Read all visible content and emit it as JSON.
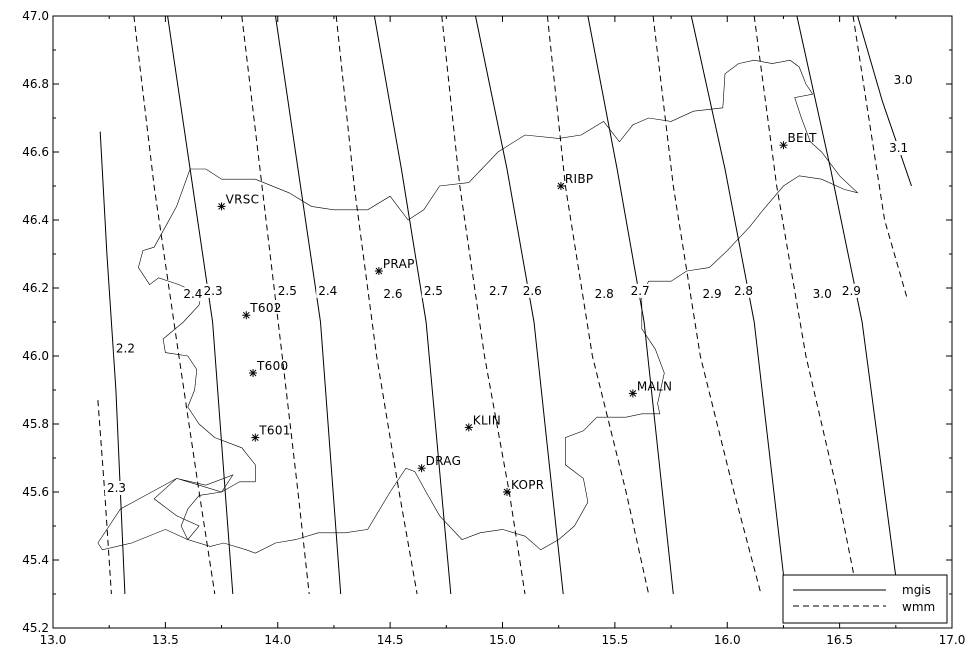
{
  "map": {
    "x_axis": {
      "min": 13.0,
      "max": 17.0,
      "ticks": [
        "13.0",
        "13.5",
        "14.0",
        "14.5",
        "15.0",
        "15.5",
        "16.0",
        "16.5",
        "17.0"
      ]
    },
    "y_axis": {
      "min": 45.2,
      "max": 47.0,
      "ticks": [
        "45.2",
        "45.4",
        "45.6",
        "45.8",
        "46.0",
        "46.2",
        "46.4",
        "46.6",
        "46.8",
        "47.0"
      ]
    }
  },
  "legend": [
    {
      "label": "mgis",
      "style": "solid"
    },
    {
      "label": "wmm",
      "style": "dashed"
    }
  ],
  "stations": [
    {
      "name": "VRSC",
      "lon": 13.75,
      "lat": 46.44
    },
    {
      "name": "RIBP",
      "lon": 15.26,
      "lat": 46.5
    },
    {
      "name": "BELT",
      "lon": 16.25,
      "lat": 46.62
    },
    {
      "name": "PRAP",
      "lon": 14.45,
      "lat": 46.25
    },
    {
      "name": "T602",
      "lon": 13.86,
      "lat": 46.12
    },
    {
      "name": "T600",
      "lon": 13.89,
      "lat": 45.95
    },
    {
      "name": "T601",
      "lon": 13.9,
      "lat": 45.76
    },
    {
      "name": "MALN",
      "lon": 15.58,
      "lat": 45.89
    },
    {
      "name": "KLIN",
      "lon": 14.85,
      "lat": 45.79
    },
    {
      "name": "DRAG",
      "lon": 14.64,
      "lat": 45.67
    },
    {
      "name": "KOPR",
      "lon": 15.02,
      "lat": 45.6
    }
  ],
  "isolines": [
    {
      "series": "mgis",
      "value": "2.2",
      "points": [
        [
          13.21,
          46.66
        ],
        [
          13.24,
          46.3
        ],
        [
          13.28,
          45.9
        ],
        [
          13.32,
          45.3
        ]
      ],
      "label_at": [
        13.28,
        46.01
      ]
    },
    {
      "series": "mgis",
      "value": "2.3",
      "points": [
        [
          13.51,
          47.0
        ],
        [
          13.61,
          46.55
        ],
        [
          13.71,
          46.1
        ],
        [
          13.8,
          45.3
        ]
      ],
      "label_at": [
        13.67,
        46.18
      ]
    },
    {
      "series": "mgis",
      "value": "2.4",
      "points": [
        [
          13.99,
          47.0
        ],
        [
          14.09,
          46.55
        ],
        [
          14.19,
          46.1
        ],
        [
          14.28,
          45.3
        ]
      ],
      "label_at": [
        14.18,
        46.18
      ]
    },
    {
      "series": "mgis",
      "value": "2.5",
      "points": [
        [
          14.43,
          47.0
        ],
        [
          14.55,
          46.55
        ],
        [
          14.66,
          46.1
        ],
        [
          14.77,
          45.3
        ]
      ],
      "label_at": [
        14.65,
        46.18
      ]
    },
    {
      "series": "mgis",
      "value": "2.6",
      "points": [
        [
          14.88,
          47.0
        ],
        [
          15.02,
          46.55
        ],
        [
          15.14,
          46.1
        ],
        [
          15.27,
          45.3
        ]
      ],
      "label_at": [
        15.09,
        46.18
      ]
    },
    {
      "series": "mgis",
      "value": "2.7",
      "points": [
        [
          15.38,
          47.0
        ],
        [
          15.51,
          46.55
        ],
        [
          15.63,
          46.1
        ],
        [
          15.76,
          45.3
        ]
      ],
      "label_at": [
        15.57,
        46.18
      ]
    },
    {
      "series": "mgis",
      "value": "2.8",
      "points": [
        [
          15.84,
          47.0
        ],
        [
          15.99,
          46.55
        ],
        [
          16.12,
          46.1
        ],
        [
          16.26,
          45.3
        ]
      ],
      "label_at": [
        16.03,
        46.18
      ]
    },
    {
      "series": "mgis",
      "value": "2.9",
      "points": [
        [
          16.31,
          47.0
        ],
        [
          16.46,
          46.55
        ],
        [
          16.6,
          46.1
        ],
        [
          16.76,
          45.3
        ]
      ],
      "label_at": [
        16.51,
        46.18
      ]
    },
    {
      "series": "mgis",
      "value": "3.0",
      "points": [
        [
          16.58,
          47.0
        ],
        [
          16.69,
          46.75
        ],
        [
          16.82,
          46.5
        ]
      ],
      "label_at": [
        16.74,
        46.8
      ]
    },
    {
      "series": "wmm",
      "value": "2.3",
      "points": [
        [
          13.2,
          45.87
        ],
        [
          13.23,
          45.6
        ],
        [
          13.26,
          45.3
        ]
      ],
      "label_at": [
        13.24,
        45.6
      ]
    },
    {
      "series": "wmm",
      "value": "2.4",
      "points": [
        [
          13.36,
          47.0
        ],
        [
          13.45,
          46.5
        ],
        [
          13.56,
          46.0
        ],
        [
          13.65,
          45.6
        ],
        [
          13.72,
          45.3
        ]
      ],
      "label_at": [
        13.58,
        46.17
      ]
    },
    {
      "series": "wmm",
      "value": "2.5",
      "points": [
        [
          13.84,
          47.0
        ],
        [
          13.93,
          46.5
        ],
        [
          14.02,
          46.0
        ],
        [
          14.09,
          45.6
        ],
        [
          14.14,
          45.3
        ]
      ],
      "label_at": [
        14.0,
        46.18
      ]
    },
    {
      "series": "wmm",
      "value": "2.6",
      "points": [
        [
          14.26,
          47.0
        ],
        [
          14.34,
          46.5
        ],
        [
          14.44,
          46.0
        ],
        [
          14.54,
          45.6
        ],
        [
          14.62,
          45.3
        ]
      ],
      "label_at": [
        14.47,
        46.17
      ]
    },
    {
      "series": "wmm",
      "value": "2.7",
      "points": [
        [
          14.73,
          47.0
        ],
        [
          14.81,
          46.5
        ],
        [
          14.92,
          46.0
        ],
        [
          15.03,
          45.6
        ],
        [
          15.1,
          45.3
        ]
      ],
      "label_at": [
        14.94,
        46.18
      ]
    },
    {
      "series": "wmm",
      "value": "2.8",
      "points": [
        [
          15.2,
          47.0
        ],
        [
          15.28,
          46.5
        ],
        [
          15.4,
          46.0
        ],
        [
          15.55,
          45.6
        ],
        [
          15.65,
          45.3
        ]
      ],
      "label_at": [
        15.41,
        46.17
      ]
    },
    {
      "series": "wmm",
      "value": "2.9",
      "points": [
        [
          15.67,
          47.0
        ],
        [
          15.76,
          46.5
        ],
        [
          15.88,
          46.0
        ],
        [
          16.03,
          45.6
        ],
        [
          16.15,
          45.3
        ]
      ],
      "label_at": [
        15.89,
        46.17
      ]
    },
    {
      "series": "wmm",
      "value": "3.0",
      "points": [
        [
          16.12,
          47.0
        ],
        [
          16.22,
          46.5
        ],
        [
          16.35,
          46.0
        ],
        [
          16.49,
          45.6
        ],
        [
          16.58,
          45.3
        ]
      ],
      "label_at": [
        16.38,
        46.17
      ]
    },
    {
      "series": "wmm",
      "value": "3.1",
      "points": [
        [
          16.56,
          47.0
        ],
        [
          16.63,
          46.7
        ],
        [
          16.7,
          46.4
        ],
        [
          16.8,
          46.17
        ]
      ],
      "label_at": [
        16.72,
        46.6
      ]
    }
  ],
  "boundary": [
    [
      13.61,
      46.55
    ],
    [
      13.68,
      46.55
    ],
    [
      13.75,
      46.52
    ],
    [
      13.9,
      46.52
    ],
    [
      14.05,
      46.48
    ],
    [
      14.15,
      46.44
    ],
    [
      14.25,
      46.43
    ],
    [
      14.4,
      46.43
    ],
    [
      14.5,
      46.47
    ],
    [
      14.58,
      46.4
    ],
    [
      14.65,
      46.43
    ],
    [
      14.72,
      46.5
    ],
    [
      14.85,
      46.51
    ],
    [
      14.98,
      46.6
    ],
    [
      15.1,
      46.65
    ],
    [
      15.25,
      46.64
    ],
    [
      15.35,
      46.65
    ],
    [
      15.45,
      46.69
    ],
    [
      15.52,
      46.63
    ],
    [
      15.58,
      46.68
    ],
    [
      15.65,
      46.7
    ],
    [
      15.75,
      46.69
    ],
    [
      15.85,
      46.72
    ],
    [
      15.98,
      46.73
    ],
    [
      15.99,
      46.83
    ],
    [
      16.05,
      46.86
    ],
    [
      16.12,
      46.87
    ],
    [
      16.2,
      46.86
    ],
    [
      16.28,
      46.87
    ],
    [
      16.32,
      46.85
    ],
    [
      16.35,
      46.8
    ],
    [
      16.38,
      46.77
    ],
    [
      16.3,
      46.76
    ],
    [
      16.33,
      46.7
    ],
    [
      16.37,
      46.63
    ],
    [
      16.42,
      46.6
    ],
    [
      16.5,
      46.53
    ],
    [
      16.58,
      46.48
    ],
    [
      16.52,
      46.49
    ],
    [
      16.42,
      46.52
    ],
    [
      16.32,
      46.53
    ],
    [
      16.25,
      46.5
    ],
    [
      16.16,
      46.43
    ],
    [
      16.1,
      46.38
    ],
    [
      16.0,
      46.31
    ],
    [
      15.92,
      46.26
    ],
    [
      15.82,
      46.25
    ],
    [
      15.75,
      46.22
    ],
    [
      15.65,
      46.22
    ],
    [
      15.62,
      46.18
    ],
    [
      15.62,
      46.08
    ],
    [
      15.68,
      46.02
    ],
    [
      15.72,
      45.95
    ],
    [
      15.69,
      45.86
    ],
    [
      15.7,
      45.83
    ],
    [
      15.62,
      45.83
    ],
    [
      15.55,
      45.82
    ],
    [
      15.48,
      45.82
    ],
    [
      15.42,
      45.82
    ],
    [
      15.36,
      45.78
    ],
    [
      15.28,
      45.76
    ],
    [
      15.28,
      45.68
    ],
    [
      15.36,
      45.64
    ],
    [
      15.38,
      45.57
    ],
    [
      15.32,
      45.5
    ],
    [
      15.25,
      45.46
    ],
    [
      15.17,
      45.43
    ],
    [
      15.1,
      45.47
    ],
    [
      15.0,
      45.49
    ],
    [
      14.9,
      45.48
    ],
    [
      14.82,
      45.46
    ],
    [
      14.72,
      45.53
    ],
    [
      14.66,
      45.6
    ],
    [
      14.61,
      45.66
    ],
    [
      14.57,
      45.67
    ],
    [
      14.5,
      45.6
    ],
    [
      14.4,
      45.49
    ],
    [
      14.3,
      45.48
    ],
    [
      14.18,
      45.48
    ],
    [
      14.08,
      45.46
    ],
    [
      13.99,
      45.45
    ],
    [
      13.9,
      45.42
    ],
    [
      13.86,
      45.43
    ],
    [
      13.76,
      45.45
    ],
    [
      13.7,
      45.44
    ],
    [
      13.6,
      45.46
    ],
    [
      13.57,
      45.5
    ],
    [
      13.6,
      45.55
    ],
    [
      13.65,
      45.59
    ],
    [
      13.75,
      45.6
    ],
    [
      13.83,
      45.63
    ],
    [
      13.9,
      45.63
    ],
    [
      13.9,
      45.68
    ],
    [
      13.84,
      45.73
    ],
    [
      13.72,
      45.76
    ],
    [
      13.65,
      45.8
    ],
    [
      13.6,
      45.85
    ],
    [
      13.63,
      45.9
    ],
    [
      13.64,
      45.96
    ],
    [
      13.6,
      46.0
    ],
    [
      13.5,
      46.01
    ],
    [
      13.49,
      46.05
    ],
    [
      13.58,
      46.1
    ],
    [
      13.65,
      46.15
    ],
    [
      13.66,
      46.18
    ],
    [
      13.56,
      46.21
    ],
    [
      13.47,
      46.23
    ],
    [
      13.43,
      46.21
    ],
    [
      13.38,
      46.26
    ],
    [
      13.4,
      46.31
    ],
    [
      13.45,
      46.32
    ],
    [
      13.5,
      46.38
    ],
    [
      13.55,
      46.44
    ],
    [
      13.61,
      46.55
    ]
  ],
  "boundary_coast": [
    [
      13.2,
      45.45
    ],
    [
      13.3,
      45.55
    ],
    [
      13.55,
      45.64
    ],
    [
      13.65,
      45.62
    ],
    [
      13.75,
      45.6
    ],
    [
      13.8,
      45.65
    ],
    [
      13.68,
      45.62
    ],
    [
      13.55,
      45.64
    ],
    [
      13.45,
      45.58
    ],
    [
      13.55,
      45.53
    ],
    [
      13.65,
      45.5
    ],
    [
      13.6,
      45.46
    ],
    [
      13.5,
      45.49
    ],
    [
      13.35,
      45.45
    ],
    [
      13.22,
      45.43
    ],
    [
      13.2,
      45.45
    ]
  ]
}
